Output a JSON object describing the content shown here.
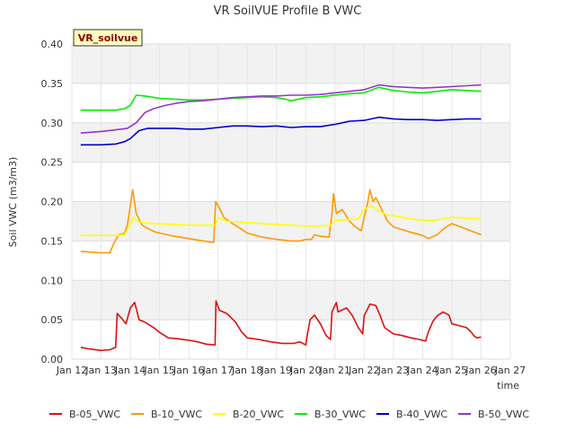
{
  "chart_data": {
    "type": "line",
    "title": "VR SoilVUE Profile B VWC",
    "xlabel": "time",
    "ylabel": "Soil VWC (m3/m3)",
    "tag": "VR_soilvue",
    "x_tick_labels": [
      "Jan 12",
      "Jan 13",
      "Jan 14",
      "Jan 15",
      "Jan 16",
      "Jan 17",
      "Jan 18",
      "Jan 19",
      "Jan 20",
      "Jan 21",
      "Jan 22",
      "Jan 23",
      "Jan 24",
      "Jan 25",
      "Jan 26",
      "Jan 27"
    ],
    "y_tick_labels": [
      "0.00",
      "0.05",
      "0.10",
      "0.15",
      "0.20",
      "0.25",
      "0.30",
      "0.35",
      "0.40"
    ],
    "xlim": [
      12,
      27
    ],
    "ylim": [
      0,
      0.4
    ],
    "grid": true,
    "legend_position": "bottom",
    "series": [
      {
        "name": "B-05_VWC",
        "color": "#dd1111",
        "points": [
          [
            12.3,
            0.015
          ],
          [
            12.6,
            0.013
          ],
          [
            13.0,
            0.011
          ],
          [
            13.3,
            0.012
          ],
          [
            13.5,
            0.015
          ],
          [
            13.55,
            0.058
          ],
          [
            13.7,
            0.052
          ],
          [
            13.85,
            0.045
          ],
          [
            14.0,
            0.065
          ],
          [
            14.15,
            0.072
          ],
          [
            14.3,
            0.05
          ],
          [
            14.5,
            0.047
          ],
          [
            14.8,
            0.04
          ],
          [
            15.0,
            0.034
          ],
          [
            15.3,
            0.027
          ],
          [
            15.6,
            0.026
          ],
          [
            16.0,
            0.024
          ],
          [
            16.3,
            0.022
          ],
          [
            16.6,
            0.019
          ],
          [
            16.9,
            0.018
          ],
          [
            16.93,
            0.074
          ],
          [
            17.05,
            0.062
          ],
          [
            17.3,
            0.058
          ],
          [
            17.6,
            0.047
          ],
          [
            17.8,
            0.035
          ],
          [
            18.0,
            0.027
          ],
          [
            18.4,
            0.025
          ],
          [
            18.8,
            0.022
          ],
          [
            19.2,
            0.02
          ],
          [
            19.6,
            0.02
          ],
          [
            19.8,
            0.022
          ],
          [
            19.9,
            0.02
          ],
          [
            20.0,
            0.018
          ],
          [
            20.05,
            0.03
          ],
          [
            20.15,
            0.05
          ],
          [
            20.3,
            0.056
          ],
          [
            20.5,
            0.045
          ],
          [
            20.7,
            0.03
          ],
          [
            20.85,
            0.025
          ],
          [
            20.9,
            0.06
          ],
          [
            21.05,
            0.072
          ],
          [
            21.1,
            0.06
          ],
          [
            21.4,
            0.065
          ],
          [
            21.6,
            0.055
          ],
          [
            21.8,
            0.04
          ],
          [
            21.95,
            0.032
          ],
          [
            22.0,
            0.055
          ],
          [
            22.2,
            0.07
          ],
          [
            22.4,
            0.068
          ],
          [
            22.55,
            0.055
          ],
          [
            22.7,
            0.04
          ],
          [
            23.0,
            0.032
          ],
          [
            23.3,
            0.03
          ],
          [
            23.6,
            0.027
          ],
          [
            23.9,
            0.025
          ],
          [
            24.1,
            0.023
          ],
          [
            24.2,
            0.035
          ],
          [
            24.35,
            0.048
          ],
          [
            24.5,
            0.055
          ],
          [
            24.7,
            0.06
          ],
          [
            24.9,
            0.056
          ],
          [
            25.0,
            0.045
          ],
          [
            25.3,
            0.042
          ],
          [
            25.5,
            0.04
          ],
          [
            25.65,
            0.035
          ],
          [
            25.75,
            0.03
          ],
          [
            25.85,
            0.027
          ],
          [
            26.0,
            0.028
          ]
        ]
      },
      {
        "name": "B-10_VWC",
        "color": "#ff9900",
        "points": [
          [
            12.3,
            0.137
          ],
          [
            12.6,
            0.136
          ],
          [
            13.0,
            0.135
          ],
          [
            13.3,
            0.135
          ],
          [
            13.45,
            0.148
          ],
          [
            13.6,
            0.158
          ],
          [
            13.8,
            0.16
          ],
          [
            13.9,
            0.17
          ],
          [
            14.0,
            0.195
          ],
          [
            14.08,
            0.215
          ],
          [
            14.2,
            0.185
          ],
          [
            14.4,
            0.17
          ],
          [
            14.6,
            0.166
          ],
          [
            14.8,
            0.162
          ],
          [
            15.0,
            0.16
          ],
          [
            15.5,
            0.156
          ],
          [
            16.0,
            0.153
          ],
          [
            16.5,
            0.15
          ],
          [
            16.85,
            0.148
          ],
          [
            16.92,
            0.2
          ],
          [
            17.0,
            0.195
          ],
          [
            17.2,
            0.18
          ],
          [
            17.5,
            0.172
          ],
          [
            17.8,
            0.165
          ],
          [
            18.0,
            0.16
          ],
          [
            18.5,
            0.155
          ],
          [
            19.0,
            0.152
          ],
          [
            19.5,
            0.15
          ],
          [
            19.8,
            0.15
          ],
          [
            20.0,
            0.152
          ],
          [
            20.2,
            0.152
          ],
          [
            20.3,
            0.158
          ],
          [
            20.5,
            0.156
          ],
          [
            20.8,
            0.155
          ],
          [
            20.9,
            0.185
          ],
          [
            20.95,
            0.21
          ],
          [
            21.05,
            0.185
          ],
          [
            21.25,
            0.19
          ],
          [
            21.5,
            0.175
          ],
          [
            21.7,
            0.168
          ],
          [
            21.9,
            0.163
          ],
          [
            22.0,
            0.18
          ],
          [
            22.1,
            0.195
          ],
          [
            22.2,
            0.215
          ],
          [
            22.3,
            0.2
          ],
          [
            22.4,
            0.205
          ],
          [
            22.6,
            0.19
          ],
          [
            22.8,
            0.175
          ],
          [
            23.0,
            0.168
          ],
          [
            23.5,
            0.162
          ],
          [
            24.0,
            0.157
          ],
          [
            24.2,
            0.153
          ],
          [
            24.5,
            0.158
          ],
          [
            24.7,
            0.165
          ],
          [
            24.9,
            0.17
          ],
          [
            25.0,
            0.172
          ],
          [
            25.3,
            0.168
          ],
          [
            25.5,
            0.165
          ],
          [
            25.7,
            0.162
          ],
          [
            26.0,
            0.158
          ]
        ]
      },
      {
        "name": "B-20_VWC",
        "color": "#ffff00",
        "points": [
          [
            12.3,
            0.157
          ],
          [
            13.0,
            0.157
          ],
          [
            13.5,
            0.157
          ],
          [
            13.8,
            0.158
          ],
          [
            14.0,
            0.172
          ],
          [
            14.1,
            0.18
          ],
          [
            14.3,
            0.174
          ],
          [
            14.8,
            0.172
          ],
          [
            15.5,
            0.171
          ],
          [
            16.0,
            0.17
          ],
          [
            16.5,
            0.17
          ],
          [
            16.9,
            0.17
          ],
          [
            17.0,
            0.18
          ],
          [
            17.3,
            0.175
          ],
          [
            17.8,
            0.174
          ],
          [
            18.5,
            0.172
          ],
          [
            19.0,
            0.171
          ],
          [
            19.5,
            0.17
          ],
          [
            20.0,
            0.169
          ],
          [
            20.5,
            0.169
          ],
          [
            20.85,
            0.17
          ],
          [
            21.0,
            0.176
          ],
          [
            21.4,
            0.177
          ],
          [
            21.8,
            0.178
          ],
          [
            22.0,
            0.19
          ],
          [
            22.25,
            0.195
          ],
          [
            22.5,
            0.188
          ],
          [
            22.8,
            0.183
          ],
          [
            23.3,
            0.18
          ],
          [
            23.8,
            0.177
          ],
          [
            24.3,
            0.176
          ],
          [
            24.7,
            0.178
          ],
          [
            25.0,
            0.18
          ],
          [
            25.5,
            0.179
          ],
          [
            26.0,
            0.178
          ]
        ]
      },
      {
        "name": "B-30_VWC",
        "color": "#00ee00",
        "points": [
          [
            12.3,
            0.316
          ],
          [
            12.8,
            0.316
          ],
          [
            13.0,
            0.316
          ],
          [
            13.5,
            0.316
          ],
          [
            13.8,
            0.318
          ],
          [
            14.0,
            0.322
          ],
          [
            14.2,
            0.335
          ],
          [
            14.5,
            0.334
          ],
          [
            15.0,
            0.331
          ],
          [
            15.5,
            0.33
          ],
          [
            16.0,
            0.329
          ],
          [
            16.5,
            0.329
          ],
          [
            17.0,
            0.33
          ],
          [
            17.5,
            0.331
          ],
          [
            18.0,
            0.332
          ],
          [
            18.5,
            0.333
          ],
          [
            19.0,
            0.332
          ],
          [
            19.3,
            0.33
          ],
          [
            19.5,
            0.328
          ],
          [
            20.0,
            0.332
          ],
          [
            20.5,
            0.333
          ],
          [
            21.0,
            0.335
          ],
          [
            21.5,
            0.337
          ],
          [
            22.0,
            0.338
          ],
          [
            22.5,
            0.345
          ],
          [
            23.0,
            0.341
          ],
          [
            23.5,
            0.339
          ],
          [
            24.0,
            0.338
          ],
          [
            24.5,
            0.34
          ],
          [
            25.0,
            0.342
          ],
          [
            25.5,
            0.341
          ],
          [
            26.0,
            0.34
          ]
        ]
      },
      {
        "name": "B-40_VWC",
        "color": "#0000cc",
        "points": [
          [
            12.3,
            0.272
          ],
          [
            13.0,
            0.272
          ],
          [
            13.5,
            0.273
          ],
          [
            13.8,
            0.276
          ],
          [
            14.0,
            0.28
          ],
          [
            14.3,
            0.29
          ],
          [
            14.6,
            0.293
          ],
          [
            15.0,
            0.293
          ],
          [
            15.5,
            0.293
          ],
          [
            16.0,
            0.292
          ],
          [
            16.5,
            0.292
          ],
          [
            17.0,
            0.294
          ],
          [
            17.5,
            0.296
          ],
          [
            18.0,
            0.296
          ],
          [
            18.5,
            0.295
          ],
          [
            19.0,
            0.296
          ],
          [
            19.5,
            0.294
          ],
          [
            20.0,
            0.295
          ],
          [
            20.5,
            0.295
          ],
          [
            21.0,
            0.298
          ],
          [
            21.5,
            0.302
          ],
          [
            22.0,
            0.303
          ],
          [
            22.5,
            0.307
          ],
          [
            23.0,
            0.305
          ],
          [
            23.5,
            0.304
          ],
          [
            24.0,
            0.304
          ],
          [
            24.5,
            0.303
          ],
          [
            25.0,
            0.304
          ],
          [
            25.5,
            0.305
          ],
          [
            26.0,
            0.305
          ]
        ]
      },
      {
        "name": "B-50_VWC",
        "color": "#9933cc",
        "points": [
          [
            12.3,
            0.287
          ],
          [
            13.0,
            0.289
          ],
          [
            13.5,
            0.291
          ],
          [
            13.9,
            0.293
          ],
          [
            14.2,
            0.3
          ],
          [
            14.5,
            0.313
          ],
          [
            14.8,
            0.318
          ],
          [
            15.2,
            0.322
          ],
          [
            15.6,
            0.325
          ],
          [
            16.0,
            0.327
          ],
          [
            16.5,
            0.328
          ],
          [
            17.0,
            0.33
          ],
          [
            17.5,
            0.332
          ],
          [
            18.0,
            0.333
          ],
          [
            18.5,
            0.334
          ],
          [
            19.0,
            0.334
          ],
          [
            19.5,
            0.335
          ],
          [
            20.0,
            0.335
          ],
          [
            20.5,
            0.336
          ],
          [
            21.0,
            0.338
          ],
          [
            21.5,
            0.34
          ],
          [
            22.0,
            0.342
          ],
          [
            22.5,
            0.348
          ],
          [
            23.0,
            0.346
          ],
          [
            23.5,
            0.345
          ],
          [
            24.0,
            0.344
          ],
          [
            24.5,
            0.345
          ],
          [
            25.0,
            0.346
          ],
          [
            25.5,
            0.347
          ],
          [
            26.0,
            0.348
          ]
        ]
      }
    ]
  }
}
